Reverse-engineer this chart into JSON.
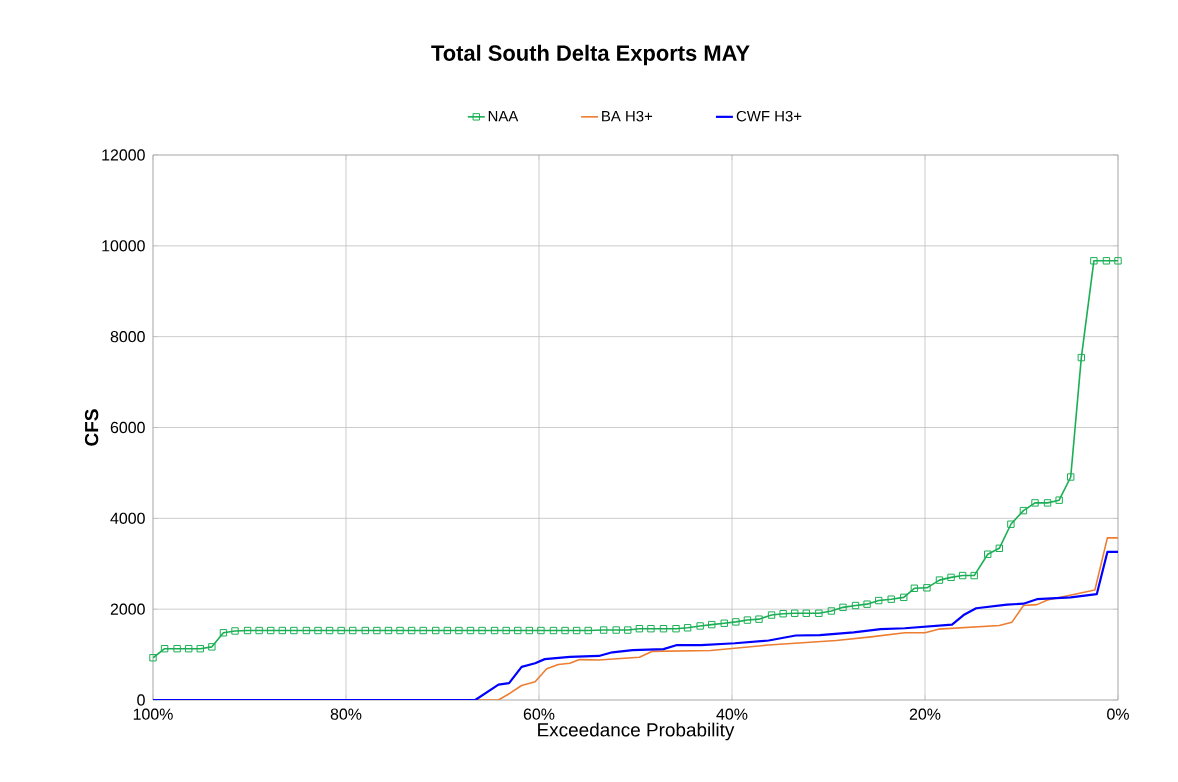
{
  "chart_data": {
    "type": "line",
    "title": "Total South Delta Exports  MAY",
    "xlabel": "Exceedance Probability",
    "ylabel": "CFS",
    "xlim": [
      100,
      0
    ],
    "ylim": [
      0,
      12000
    ],
    "xticks": [
      {
        "value": 100,
        "label": "100%"
      },
      {
        "value": 80,
        "label": "80%"
      },
      {
        "value": 60,
        "label": "60%"
      },
      {
        "value": 40,
        "label": "40%"
      },
      {
        "value": 20,
        "label": "20%"
      },
      {
        "value": 0,
        "label": "0%"
      }
    ],
    "yticks": [
      0,
      2000,
      4000,
      6000,
      8000,
      10000,
      12000
    ],
    "grid": true,
    "legend": "top",
    "line_style": "solid",
    "series": [
      {
        "name": "NAA",
        "color": "#1aaf54",
        "marker": "square",
        "x": [
          100,
          98.8,
          97.5,
          96.3,
          95.1,
          93.9,
          92.7,
          91.5,
          90.2,
          89.0,
          87.8,
          86.6,
          85.4,
          84.1,
          82.9,
          81.7,
          80.5,
          79.3,
          78.0,
          76.8,
          75.6,
          74.4,
          73.2,
          72.0,
          70.7,
          69.5,
          68.3,
          67.1,
          65.9,
          64.6,
          63.4,
          62.2,
          61.0,
          59.8,
          58.5,
          57.3,
          56.1,
          54.9,
          53.3,
          52.0,
          50.8,
          49.6,
          48.4,
          47.1,
          45.8,
          44.6,
          43.3,
          42.1,
          40.8,
          39.6,
          38.4,
          37.2,
          35.9,
          34.7,
          33.5,
          32.3,
          31.0,
          29.7,
          28.5,
          27.2,
          26.0,
          24.8,
          23.5,
          22.2,
          21.1,
          19.8,
          18.5,
          17.3,
          16.1,
          14.9,
          13.5,
          12.3,
          11.1,
          9.8,
          8.6,
          7.3,
          6.1,
          4.9,
          3.8,
          2.5,
          1.2,
          0
        ],
        "values": [
          930,
          1130,
          1130,
          1130,
          1130,
          1170,
          1480,
          1520,
          1530,
          1530,
          1530,
          1530,
          1530,
          1530,
          1530,
          1530,
          1530,
          1530,
          1530,
          1530,
          1530,
          1530,
          1530,
          1530,
          1530,
          1530,
          1530,
          1530,
          1530,
          1530,
          1530,
          1530,
          1530,
          1530,
          1530,
          1530,
          1530,
          1530,
          1540,
          1540,
          1540,
          1570,
          1570,
          1570,
          1570,
          1590,
          1630,
          1660,
          1690,
          1720,
          1760,
          1780,
          1870,
          1900,
          1910,
          1910,
          1910,
          1960,
          2040,
          2080,
          2110,
          2190,
          2220,
          2260,
          2460,
          2470,
          2640,
          2700,
          2740,
          2740,
          3210,
          3340,
          3870,
          4170,
          4340,
          4340,
          4400,
          4910,
          7540,
          9670,
          9670,
          9670
        ]
      },
      {
        "name": "BA H3+",
        "color": "#ed7d31",
        "marker": "none",
        "x": [
          100,
          64.2,
          63.0,
          61.8,
          60.4,
          59.2,
          58.0,
          56.8,
          55.8,
          53.8,
          49.6,
          48.3,
          42.2,
          36.2,
          32.7,
          29.2,
          25.6,
          22.1,
          20.0,
          18.6,
          12.3,
          11.0,
          9.8,
          8.4,
          7.3,
          2.4,
          1.1,
          0
        ],
        "values": [
          0,
          0,
          150,
          320,
          400,
          690,
          780,
          810,
          890,
          880,
          940,
          1070,
          1090,
          1210,
          1260,
          1310,
          1390,
          1480,
          1480,
          1560,
          1640,
          1710,
          2080,
          2100,
          2200,
          2420,
          3570,
          3570
        ]
      },
      {
        "name": "CWF H3+",
        "color": "#0000ff",
        "marker": "none",
        "x": [
          100,
          66.6,
          64.2,
          63.1,
          61.8,
          60.4,
          59.4,
          56.8,
          53.8,
          52.4,
          50.3,
          47.1,
          45.7,
          43.2,
          39.7,
          36.2,
          33.4,
          30.9,
          27.4,
          24.6,
          22.1,
          17.2,
          16.0,
          14.7,
          11.5,
          9.8,
          8.4,
          4.9,
          2.2,
          1.1,
          0
        ],
        "values": [
          0,
          0,
          340,
          370,
          730,
          810,
          900,
          950,
          970,
          1050,
          1100,
          1120,
          1210,
          1210,
          1250,
          1310,
          1420,
          1430,
          1490,
          1560,
          1580,
          1660,
          1870,
          2020,
          2100,
          2120,
          2220,
          2260,
          2330,
          3260,
          3260
        ]
      }
    ]
  }
}
